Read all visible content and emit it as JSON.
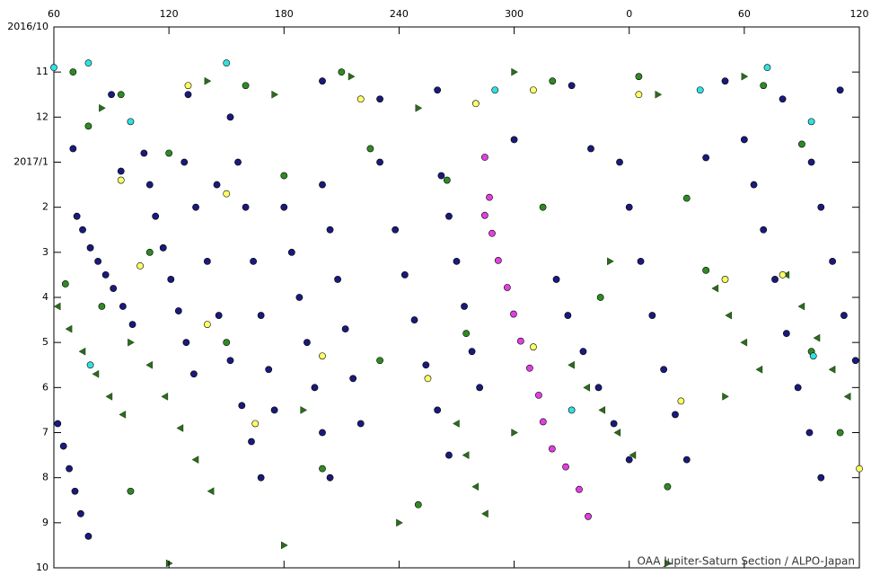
{
  "chart_data": {
    "type": "scatter",
    "annotation": "OAA Jupiter-Saturn Section / ALPO-Japan",
    "xlim": [
      60,
      480
    ],
    "xticks": [
      60,
      120,
      180,
      240,
      300,
      {
        "value": 360,
        "label": "0"
      },
      {
        "value": 420,
        "label": "60"
      },
      {
        "value": 480,
        "label": "120"
      }
    ],
    "ylim": [
      0,
      12
    ],
    "yticks": [
      {
        "value": 0,
        "label": "2016/10"
      },
      {
        "value": 1,
        "label": "11"
      },
      {
        "value": 2,
        "label": "12"
      },
      {
        "value": 3,
        "label": "2017/1"
      },
      {
        "value": 4,
        "label": "2"
      },
      {
        "value": 5,
        "label": "3"
      },
      {
        "value": 6,
        "label": "4"
      },
      {
        "value": 7,
        "label": "5"
      },
      {
        "value": 8,
        "label": "6"
      },
      {
        "value": 9,
        "label": "7"
      },
      {
        "value": 10,
        "label": "8"
      },
      {
        "value": 11,
        "label": "9"
      },
      {
        "value": 12,
        "label": "10"
      }
    ],
    "y_inverted": true,
    "series": [
      {
        "marker": "triangle-left",
        "color": "#2d6a1f",
        "x": [
          62,
          68,
          75,
          82,
          89,
          96,
          110,
          118,
          126,
          134,
          142,
          330,
          338,
          346,
          354,
          362,
          405,
          412,
          420,
          428,
          442,
          450,
          458,
          466,
          474,
          270,
          275,
          280,
          285
        ],
        "values": [
          6.2,
          6.7,
          7.2,
          7.7,
          8.2,
          8.6,
          7.5,
          8.2,
          8.9,
          9.6,
          10.3,
          7.5,
          8.0,
          8.5,
          9.0,
          9.5,
          5.8,
          6.4,
          7.0,
          7.6,
          5.5,
          6.2,
          6.9,
          7.6,
          8.2,
          8.8,
          9.5,
          10.2,
          10.8
        ]
      },
      {
        "marker": "triangle-right",
        "color": "#2d6a1f",
        "x": [
          85,
          140,
          175,
          215,
          250,
          300,
          375,
          420,
          100,
          190,
          240,
          300,
          350,
          410,
          120,
          180,
          380
        ],
        "values": [
          1.8,
          1.2,
          1.5,
          1.1,
          1.8,
          1.0,
          1.5,
          1.1,
          7.0,
          8.5,
          11.0,
          9.0,
          5.2,
          8.2,
          11.9,
          11.5,
          11.9
        ]
      },
      {
        "marker": "circle",
        "color": "#2e8b22",
        "x": [
          70,
          95,
          160,
          210,
          320,
          365,
          430,
          78,
          120,
          180,
          225,
          265,
          315,
          390,
          450,
          66,
          85,
          110,
          150,
          200,
          230,
          275,
          345,
          400,
          455,
          100,
          250,
          380,
          470
        ],
        "values": [
          1.0,
          1.5,
          1.3,
          1.0,
          1.2,
          1.1,
          1.3,
          2.2,
          2.8,
          3.3,
          2.7,
          3.4,
          4.0,
          3.8,
          2.6,
          5.7,
          6.2,
          5.0,
          7.0,
          9.8,
          7.4,
          6.8,
          6.0,
          5.4,
          7.2,
          10.3,
          10.6,
          10.2,
          9.0
        ]
      },
      {
        "marker": "circle",
        "color": "#1a1a7a",
        "x": [
          72,
          75,
          79,
          83,
          87,
          91,
          96,
          101,
          62,
          65,
          68,
          71,
          74,
          78,
          107,
          110,
          113,
          117,
          121,
          125,
          129,
          133,
          128,
          134,
          140,
          146,
          152,
          158,
          163,
          168,
          152,
          156,
          160,
          164,
          168,
          172,
          175,
          180,
          184,
          188,
          192,
          196,
          200,
          204,
          200,
          204,
          208,
          212,
          216,
          220,
          238,
          243,
          248,
          254,
          260,
          266,
          262,
          266,
          270,
          274,
          278,
          282,
          322,
          328,
          336,
          344,
          352,
          360,
          355,
          360,
          366,
          372,
          378,
          384,
          390,
          420,
          425,
          430,
          436,
          442,
          448,
          454,
          460,
          455,
          460,
          466,
          472,
          478,
          90,
          130,
          200,
          230,
          260,
          330,
          410,
          440,
          470,
          70,
          95,
          145,
          230,
          300,
          340,
          400
        ],
        "values": [
          4.2,
          4.5,
          4.9,
          5.2,
          5.5,
          5.8,
          6.2,
          6.6,
          8.8,
          9.3,
          9.8,
          10.3,
          10.8,
          11.3,
          2.8,
          3.5,
          4.2,
          4.9,
          5.6,
          6.3,
          7.0,
          7.7,
          3.0,
          4.0,
          5.2,
          6.4,
          7.4,
          8.4,
          9.2,
          10.0,
          2.0,
          3.0,
          4.0,
          5.2,
          6.4,
          7.6,
          8.5,
          4.0,
          5.0,
          6.0,
          7.0,
          8.0,
          9.0,
          10.0,
          3.5,
          4.5,
          5.6,
          6.7,
          7.8,
          8.8,
          4.5,
          5.5,
          6.5,
          7.5,
          8.5,
          9.5,
          3.3,
          4.2,
          5.2,
          6.2,
          7.2,
          8.0,
          5.6,
          6.4,
          7.2,
          8.0,
          8.8,
          9.6,
          3.0,
          4.0,
          5.2,
          6.4,
          7.6,
          8.6,
          9.6,
          2.5,
          3.5,
          4.5,
          5.6,
          6.8,
          8.0,
          9.0,
          10.0,
          3.0,
          4.0,
          5.2,
          6.4,
          7.4,
          1.5,
          1.5,
          1.2,
          1.6,
          1.4,
          1.3,
          1.2,
          1.6,
          1.4,
          2.7,
          3.2,
          3.5,
          3.0,
          2.5,
          2.7,
          2.9
        ]
      },
      {
        "marker": "circle",
        "color": "#ffff66",
        "x": [
          130,
          220,
          280,
          310,
          365,
          95,
          150,
          105,
          140,
          200,
          255,
          310,
          387,
          410,
          440,
          480,
          165
        ],
        "values": [
          1.3,
          1.6,
          1.7,
          1.4,
          1.5,
          3.4,
          3.7,
          5.3,
          6.6,
          7.3,
          7.8,
          7.1,
          8.3,
          5.6,
          5.5,
          9.8,
          8.8
        ]
      },
      {
        "marker": "circle",
        "color": "#33e0e0",
        "x": [
          60,
          78,
          100,
          150,
          290,
          330,
          397,
          432,
          455,
          79,
          456
        ],
        "values": [
          0.9,
          0.8,
          2.1,
          0.8,
          1.4,
          8.5,
          1.4,
          0.9,
          2.1,
          7.5,
          7.3
        ]
      },
      {
        "marker": "circle",
        "color": "#e040e0",
        "x": [
          284.7,
          287.1,
          284.7,
          288.5,
          291.7,
          296.4,
          299.7,
          303.4,
          308.1,
          312.8,
          315.1,
          319.8,
          326.9,
          333.9,
          338.6
        ],
        "values": [
          2.89,
          3.78,
          4.18,
          4.58,
          5.18,
          5.78,
          6.37,
          6.97,
          7.57,
          8.17,
          8.76,
          9.36,
          9.76,
          10.26,
          10.86
        ]
      }
    ]
  }
}
